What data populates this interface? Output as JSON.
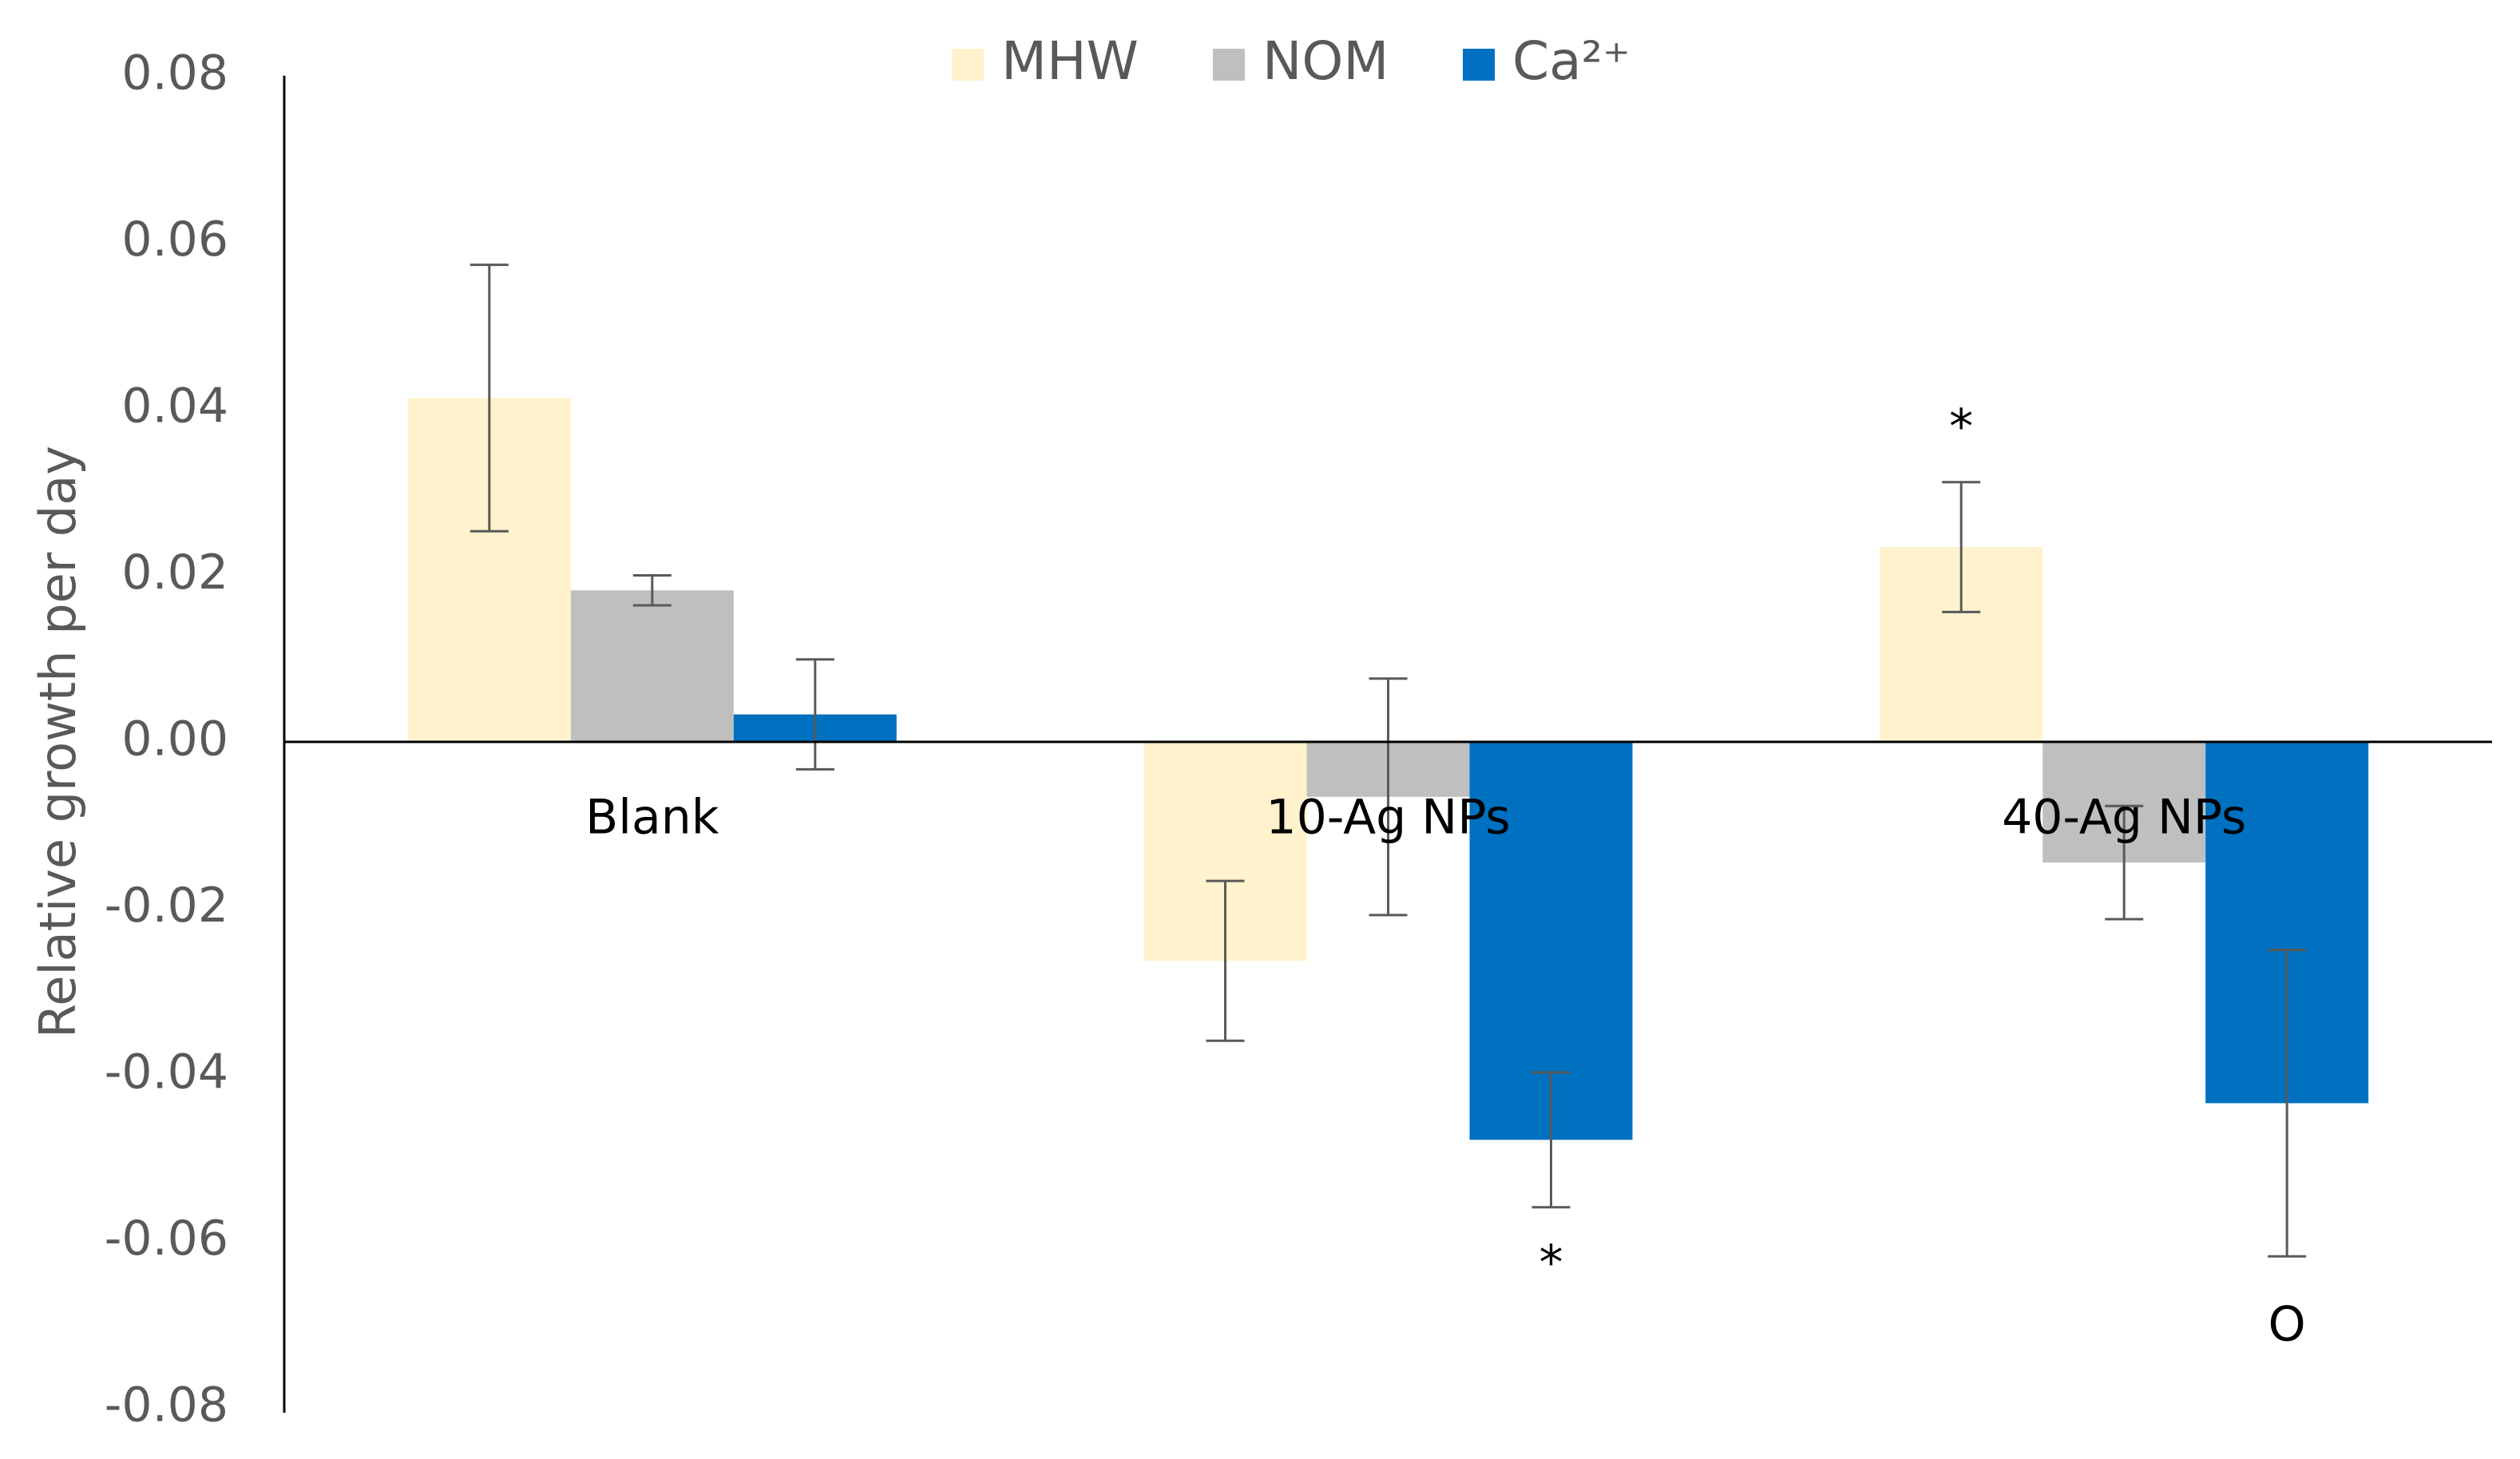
{
  "chart_data": {
    "type": "bar",
    "y_label": "Relative growth per day",
    "categories": [
      "Blank",
      "10-Ag NPs",
      "40-Ag NPs"
    ],
    "series": [
      {
        "name": "MHW",
        "color": "#fff2cc",
        "values": [
          0.0413,
          -0.0263,
          0.0234
        ],
        "errors": [
          0.016,
          0.0096,
          0.0078
        ]
      },
      {
        "name": "NOM",
        "color": "#bfbfbf",
        "values": [
          0.0182,
          -0.0066,
          -0.0145
        ],
        "errors": [
          0.0018,
          0.0142,
          0.0068
        ]
      },
      {
        "name": "Ca²⁺",
        "color": "#0070c0",
        "values": [
          0.0033,
          -0.0478,
          -0.0434
        ],
        "errors": [
          0.0066,
          0.0081,
          0.0184
        ]
      }
    ],
    "annotations": [
      "*",
      "*",
      "O"
    ],
    "ylim": [
      -0.08,
      0.08
    ],
    "yticks": [
      0.08,
      0.06,
      0.04,
      0.02,
      {
        "value": 0,
        "label": "0.00"
      },
      -0.02,
      -0.04,
      -0.06,
      -0.08
    ],
    "grid": false,
    "legend": "top"
  }
}
